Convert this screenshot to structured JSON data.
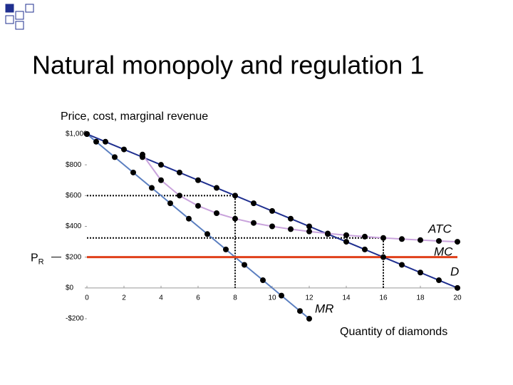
{
  "chart_data": {
    "type": "line",
    "title": "Natural monopoly and regulation 1",
    "ylabel": "Price, cost, marginal revenue",
    "xlabel": "Quantity of diamonds",
    "xlim": [
      0,
      20
    ],
    "ylim": [
      -200,
      1000
    ],
    "xticks": [
      0,
      2,
      4,
      6,
      8,
      10,
      12,
      14,
      16,
      18,
      20
    ],
    "yticks": [
      {
        "value": 1000,
        "label": "$1,000"
      },
      {
        "value": 800,
        "label": "$800"
      },
      {
        "value": 600,
        "label": "$600"
      },
      {
        "value": 400,
        "label": "$400"
      },
      {
        "value": 200,
        "label": "$200"
      },
      {
        "value": 0,
        "label": "$0"
      },
      {
        "value": -200,
        "label": "-$200"
      }
    ],
    "series": [
      {
        "name": "D",
        "color": "#1f2f8f",
        "x": [
          0,
          1,
          2,
          3,
          4,
          5,
          6,
          7,
          8,
          9,
          10,
          11,
          12,
          13,
          14,
          15,
          16,
          17,
          18,
          19,
          20
        ],
        "values": [
          1000,
          950,
          900,
          850,
          800,
          750,
          700,
          650,
          600,
          550,
          500,
          450,
          400,
          350,
          300,
          250,
          200,
          150,
          100,
          50,
          0
        ]
      },
      {
        "name": "MR",
        "color": "#5b7fc0",
        "x": [
          0,
          0.5,
          1.5,
          2.5,
          3.5,
          4.5,
          5.5,
          6.5,
          7.5,
          8.5,
          9.5,
          10.5,
          11.5,
          12
        ],
        "values": [
          1000,
          950,
          850,
          750,
          650,
          550,
          450,
          350,
          250,
          150,
          50,
          -50,
          -150,
          -200
        ]
      },
      {
        "name": "ATC",
        "color": "#c9a3dc",
        "x": [
          3,
          4,
          5,
          6,
          7,
          8,
          9,
          10,
          11,
          12,
          13,
          14,
          15,
          16,
          17,
          18,
          19,
          20
        ],
        "values": [
          866.7,
          700,
          600,
          533.3,
          485.7,
          450,
          422.2,
          400,
          381.8,
          366.7,
          353.8,
          342.9,
          333.3,
          325,
          317.6,
          311.1,
          305.3,
          300
        ]
      },
      {
        "name": "MC",
        "color": "#e0401a",
        "x": [
          0,
          20
        ],
        "values": [
          200,
          200
        ]
      }
    ],
    "guides": [
      {
        "x": 8,
        "y": 600
      },
      {
        "x": 16,
        "y": 325
      }
    ],
    "annotation": {
      "text": "P",
      "subscript": "R"
    }
  }
}
